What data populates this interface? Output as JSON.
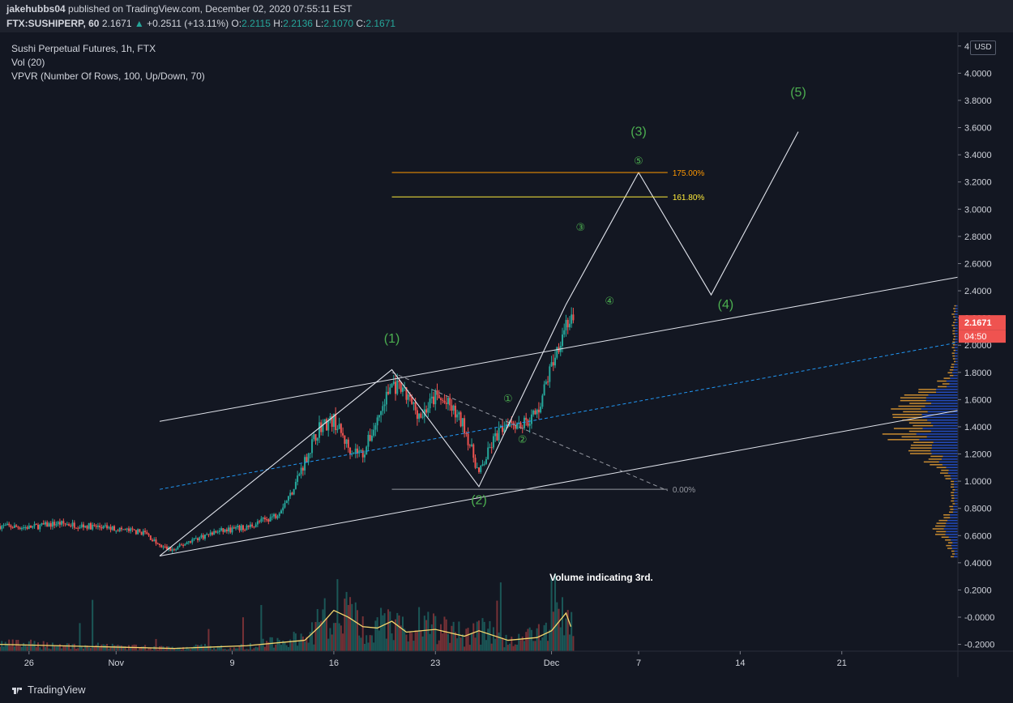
{
  "header": {
    "author": "jakehubbs04",
    "published_text": "published on TradingView.com, December 02, 2020 07:55:11 EST",
    "symbol": "FTX:SUSHIPERP, 60",
    "price": "2.1671",
    "change_arrow": "▲",
    "change": "+0.2511 (+13.11%)",
    "o_label": "O:",
    "o": "2.2115",
    "h_label": "H:",
    "h": "2.2136",
    "l_label": "L:",
    "l": "2.1070",
    "c_label": "C:",
    "c": "2.1671"
  },
  "legend": {
    "title": "Sushi Perpetual Futures, 1h, FTX",
    "vol": "Vol (20)",
    "vpvr": "VPVR (Number Of Rows, 100, Up/Down, 70)"
  },
  "price_axis": {
    "currency": "USD",
    "last_price": "2.1671",
    "countdown": "04:50"
  },
  "footer": {
    "brand": "TradingView"
  },
  "colors": {
    "background": "#131722",
    "up": "#26a69a",
    "down": "#ef5350",
    "wave_labels": "#4caf50",
    "fib_175": "#ff9800",
    "fib_1618": "#ffeb3b",
    "channel_mid": "#2196f3",
    "volume_ma": "#f5d76e",
    "vp_up": "#2962ff",
    "vp_down": "#f6a935"
  },
  "chart_data": {
    "type": "candlestick",
    "title": "Sushi Perpetual Futures, 1h, FTX",
    "xlabel": "",
    "ylabel": "",
    "x_ticks": [
      "26",
      "Nov",
      "9",
      "16",
      "23",
      "Dec",
      "7",
      "14",
      "21"
    ],
    "y_ticks": [
      "4.2000",
      "4.0000",
      "3.8000",
      "3.6000",
      "3.4000",
      "3.2000",
      "3.0000",
      "2.8000",
      "2.6000",
      "2.4000",
      "2.2000",
      "2.0000",
      "1.8000",
      "1.6000",
      "1.4000",
      "1.2000",
      "1.0000",
      "0.8000",
      "0.6000",
      "0.4000",
      "0.2000",
      "-0.0000",
      "-0.2000"
    ],
    "ylim": [
      -0.25,
      4.3
    ],
    "x_range_days": [
      "2020-10-24",
      "2020-12-29"
    ],
    "price_path": [
      [
        "2020-10-24",
        0.67
      ],
      [
        "2020-10-26",
        0.66
      ],
      [
        "2020-10-28",
        0.69
      ],
      [
        "2020-10-30",
        0.67
      ],
      [
        "2020-11-01",
        0.65
      ],
      [
        "2020-11-03",
        0.62
      ],
      [
        "2020-11-04",
        0.52
      ],
      [
        "2020-11-05",
        0.49
      ],
      [
        "2020-11-06",
        0.56
      ],
      [
        "2020-11-08",
        0.63
      ],
      [
        "2020-11-10",
        0.66
      ],
      [
        "2020-11-12",
        0.75
      ],
      [
        "2020-11-13",
        0.9
      ],
      [
        "2020-11-14",
        1.15
      ],
      [
        "2020-11-15",
        1.4
      ],
      [
        "2020-11-16",
        1.45
      ],
      [
        "2020-11-17",
        1.25
      ],
      [
        "2020-11-18",
        1.2
      ],
      [
        "2020-11-19",
        1.45
      ],
      [
        "2020-11-20",
        1.72
      ],
      [
        "2020-11-21",
        1.62
      ],
      [
        "2020-11-22",
        1.48
      ],
      [
        "2020-11-23",
        1.62
      ],
      [
        "2020-11-24",
        1.55
      ],
      [
        "2020-11-25",
        1.4
      ],
      [
        "2020-11-26",
        1.05
      ],
      [
        "2020-11-27",
        1.3
      ],
      [
        "2020-11-28",
        1.45
      ],
      [
        "2020-11-29",
        1.42
      ],
      [
        "2020-11-30",
        1.5
      ],
      [
        "2020-12-01",
        1.85
      ],
      [
        "2020-12-02",
        2.17
      ]
    ],
    "volume_ma_path": [
      [
        "2020-10-24",
        0.05
      ],
      [
        "2020-11-05",
        0.02
      ],
      [
        "2020-11-10",
        0.04
      ],
      [
        "2020-11-14",
        0.08
      ],
      [
        "2020-11-15",
        0.18
      ],
      [
        "2020-11-16",
        0.3
      ],
      [
        "2020-11-17",
        0.25
      ],
      [
        "2020-11-18",
        0.18
      ],
      [
        "2020-11-19",
        0.17
      ],
      [
        "2020-11-20",
        0.22
      ],
      [
        "2020-11-21",
        0.14
      ],
      [
        "2020-11-23",
        0.16
      ],
      [
        "2020-11-25",
        0.11
      ],
      [
        "2020-11-26",
        0.15
      ],
      [
        "2020-11-28",
        0.08
      ],
      [
        "2020-11-30",
        0.1
      ],
      [
        "2020-12-01",
        0.15
      ],
      [
        "2020-12-02",
        0.28
      ],
      [
        "2020-12-02T08",
        0.18
      ]
    ],
    "annotations": {
      "channel_upper": [
        [
          "2020-11-04",
          1.44
        ],
        [
          "2020-12-29",
          2.5
        ]
      ],
      "channel_mid": [
        [
          "2020-11-04",
          0.94
        ],
        [
          "2020-12-29",
          2.02
        ]
      ],
      "channel_lower": [
        [
          "2020-11-04",
          0.45
        ],
        [
          "2020-12-29",
          1.52
        ]
      ],
      "wave_path": [
        [
          "2020-11-04",
          0.45
        ],
        [
          "2020-11-20",
          1.82
        ],
        [
          "2020-11-26",
          0.96
        ],
        [
          "2020-12-02",
          2.3
        ],
        [
          "2020-12-07",
          3.27
        ],
        [
          "2020-12-12",
          2.37
        ],
        [
          "2020-12-18",
          3.57
        ]
      ],
      "dashed_retrace": [
        [
          "2020-11-20",
          1.8
        ],
        [
          "2020-12-09",
          0.93
        ]
      ],
      "fib_levels": [
        {
          "label": "175.00%",
          "value": 3.27,
          "color": "#ff9800"
        },
        {
          "label": "161.80%",
          "value": 3.09,
          "color": "#ffeb3b"
        },
        {
          "label": "0.00%",
          "value": 0.94,
          "color": "#9598a1"
        }
      ],
      "primary_wave_labels": [
        {
          "text": "(1)",
          "at": [
            "2020-11-20",
            2.02
          ]
        },
        {
          "text": "(2)",
          "at": [
            "2020-11-26",
            0.83
          ]
        },
        {
          "text": "(3)",
          "at": [
            "2020-12-07",
            3.54
          ]
        },
        {
          "text": "(4)",
          "at": [
            "2020-12-13",
            2.27
          ]
        },
        {
          "text": "(5)",
          "at": [
            "2020-12-18",
            3.83
          ]
        }
      ],
      "sub_wave_labels": [
        {
          "text": "①",
          "at": [
            "2020-11-28",
            1.58
          ]
        },
        {
          "text": "②",
          "at": [
            "2020-11-29",
            1.28
          ]
        },
        {
          "text": "③",
          "at": [
            "2020-12-03",
            2.84
          ]
        },
        {
          "text": "④",
          "at": [
            "2020-12-05",
            2.3
          ]
        },
        {
          "text": "⑤",
          "at": [
            "2020-12-07",
            3.33
          ]
        }
      ],
      "note": "Volume indicating 3rd."
    }
  }
}
